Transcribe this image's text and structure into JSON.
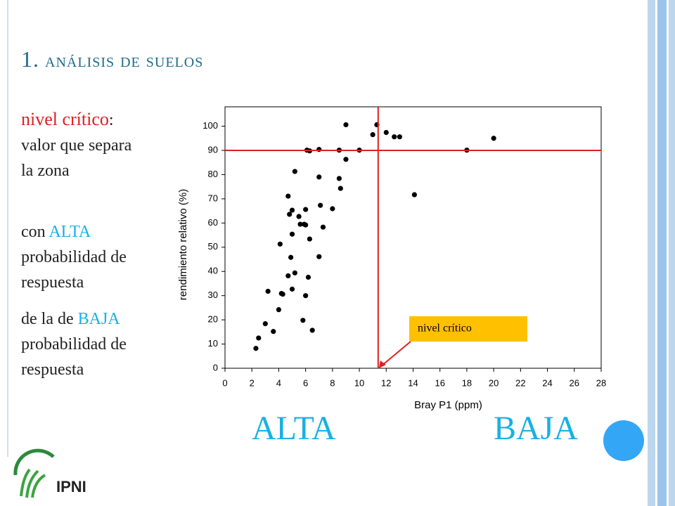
{
  "slide": {
    "title_number": "1.",
    "title": "análisis de suelos",
    "definition": {
      "term": "nivel crítico",
      "colon": ":",
      "text": "valor que separa la zona"
    },
    "alta_line": {
      "before": "con",
      "highlight": "ALTA",
      "after": "probabilidad de respuesta"
    },
    "baja_line": {
      "before": "de la de",
      "highlight": "BAJA",
      "after": "probabilidad de respuesta"
    },
    "zone_left": "ALTA",
    "zone_right": "BAJA",
    "logo": "IPNI"
  },
  "chart_data": {
    "type": "scatter",
    "xlabel": "Bray P1 (ppm)",
    "ylabel": "rendimiento relativo (%)",
    "annotation": "nivel crítico",
    "marker_color": "#000000",
    "reference_color": "#e02020",
    "reference_lines": {
      "x": 11.4,
      "y": 90
    },
    "xlim": [
      0,
      28
    ],
    "ylim": [
      0,
      108
    ],
    "xticks": [
      0,
      2,
      4,
      6,
      8,
      10,
      12,
      14,
      16,
      18,
      20,
      22,
      24,
      26,
      28
    ],
    "yticks": [
      0,
      10,
      20,
      30,
      40,
      50,
      60,
      70,
      80,
      90,
      100
    ],
    "x": [
      2.3,
      2.5,
      3.0,
      3.2,
      3.6,
      4.0,
      4.1,
      4.2,
      4.3,
      4.7,
      4.7,
      4.8,
      4.9,
      5.0,
      5.0,
      5.0,
      5.2,
      5.2,
      5.5,
      5.6,
      5.8,
      5.9,
      6.0,
      6.0,
      6.0,
      6.1,
      6.3,
      6.2,
      6.3,
      6.5,
      7.0,
      7.0,
      7.0,
      7.1,
      7.3,
      8.0,
      8.5,
      8.5,
      8.6,
      9.0,
      9.0,
      10.0,
      11.0,
      11.3,
      12.0,
      12.6,
      13.0,
      14.1,
      18.0,
      20.0
    ],
    "values": [
      8.2,
      12.5,
      18.4,
      31.8,
      15.2,
      24.2,
      51.3,
      30.9,
      30.6,
      71.1,
      38.2,
      63.6,
      45.8,
      65.3,
      55.4,
      32.7,
      81.3,
      39.4,
      62.7,
      59.5,
      19.8,
      59.5,
      65.6,
      59.2,
      30.0,
      90.1,
      89.8,
      37.6,
      53.4,
      15.7,
      90.4,
      79.0,
      46.1,
      67.3,
      58.3,
      65.9,
      90.1,
      78.4,
      74.3,
      86.3,
      100.6,
      90.1,
      96.5,
      100.6,
      97.4,
      95.6,
      95.6,
      71.7,
      90.1,
      95.0
    ]
  }
}
